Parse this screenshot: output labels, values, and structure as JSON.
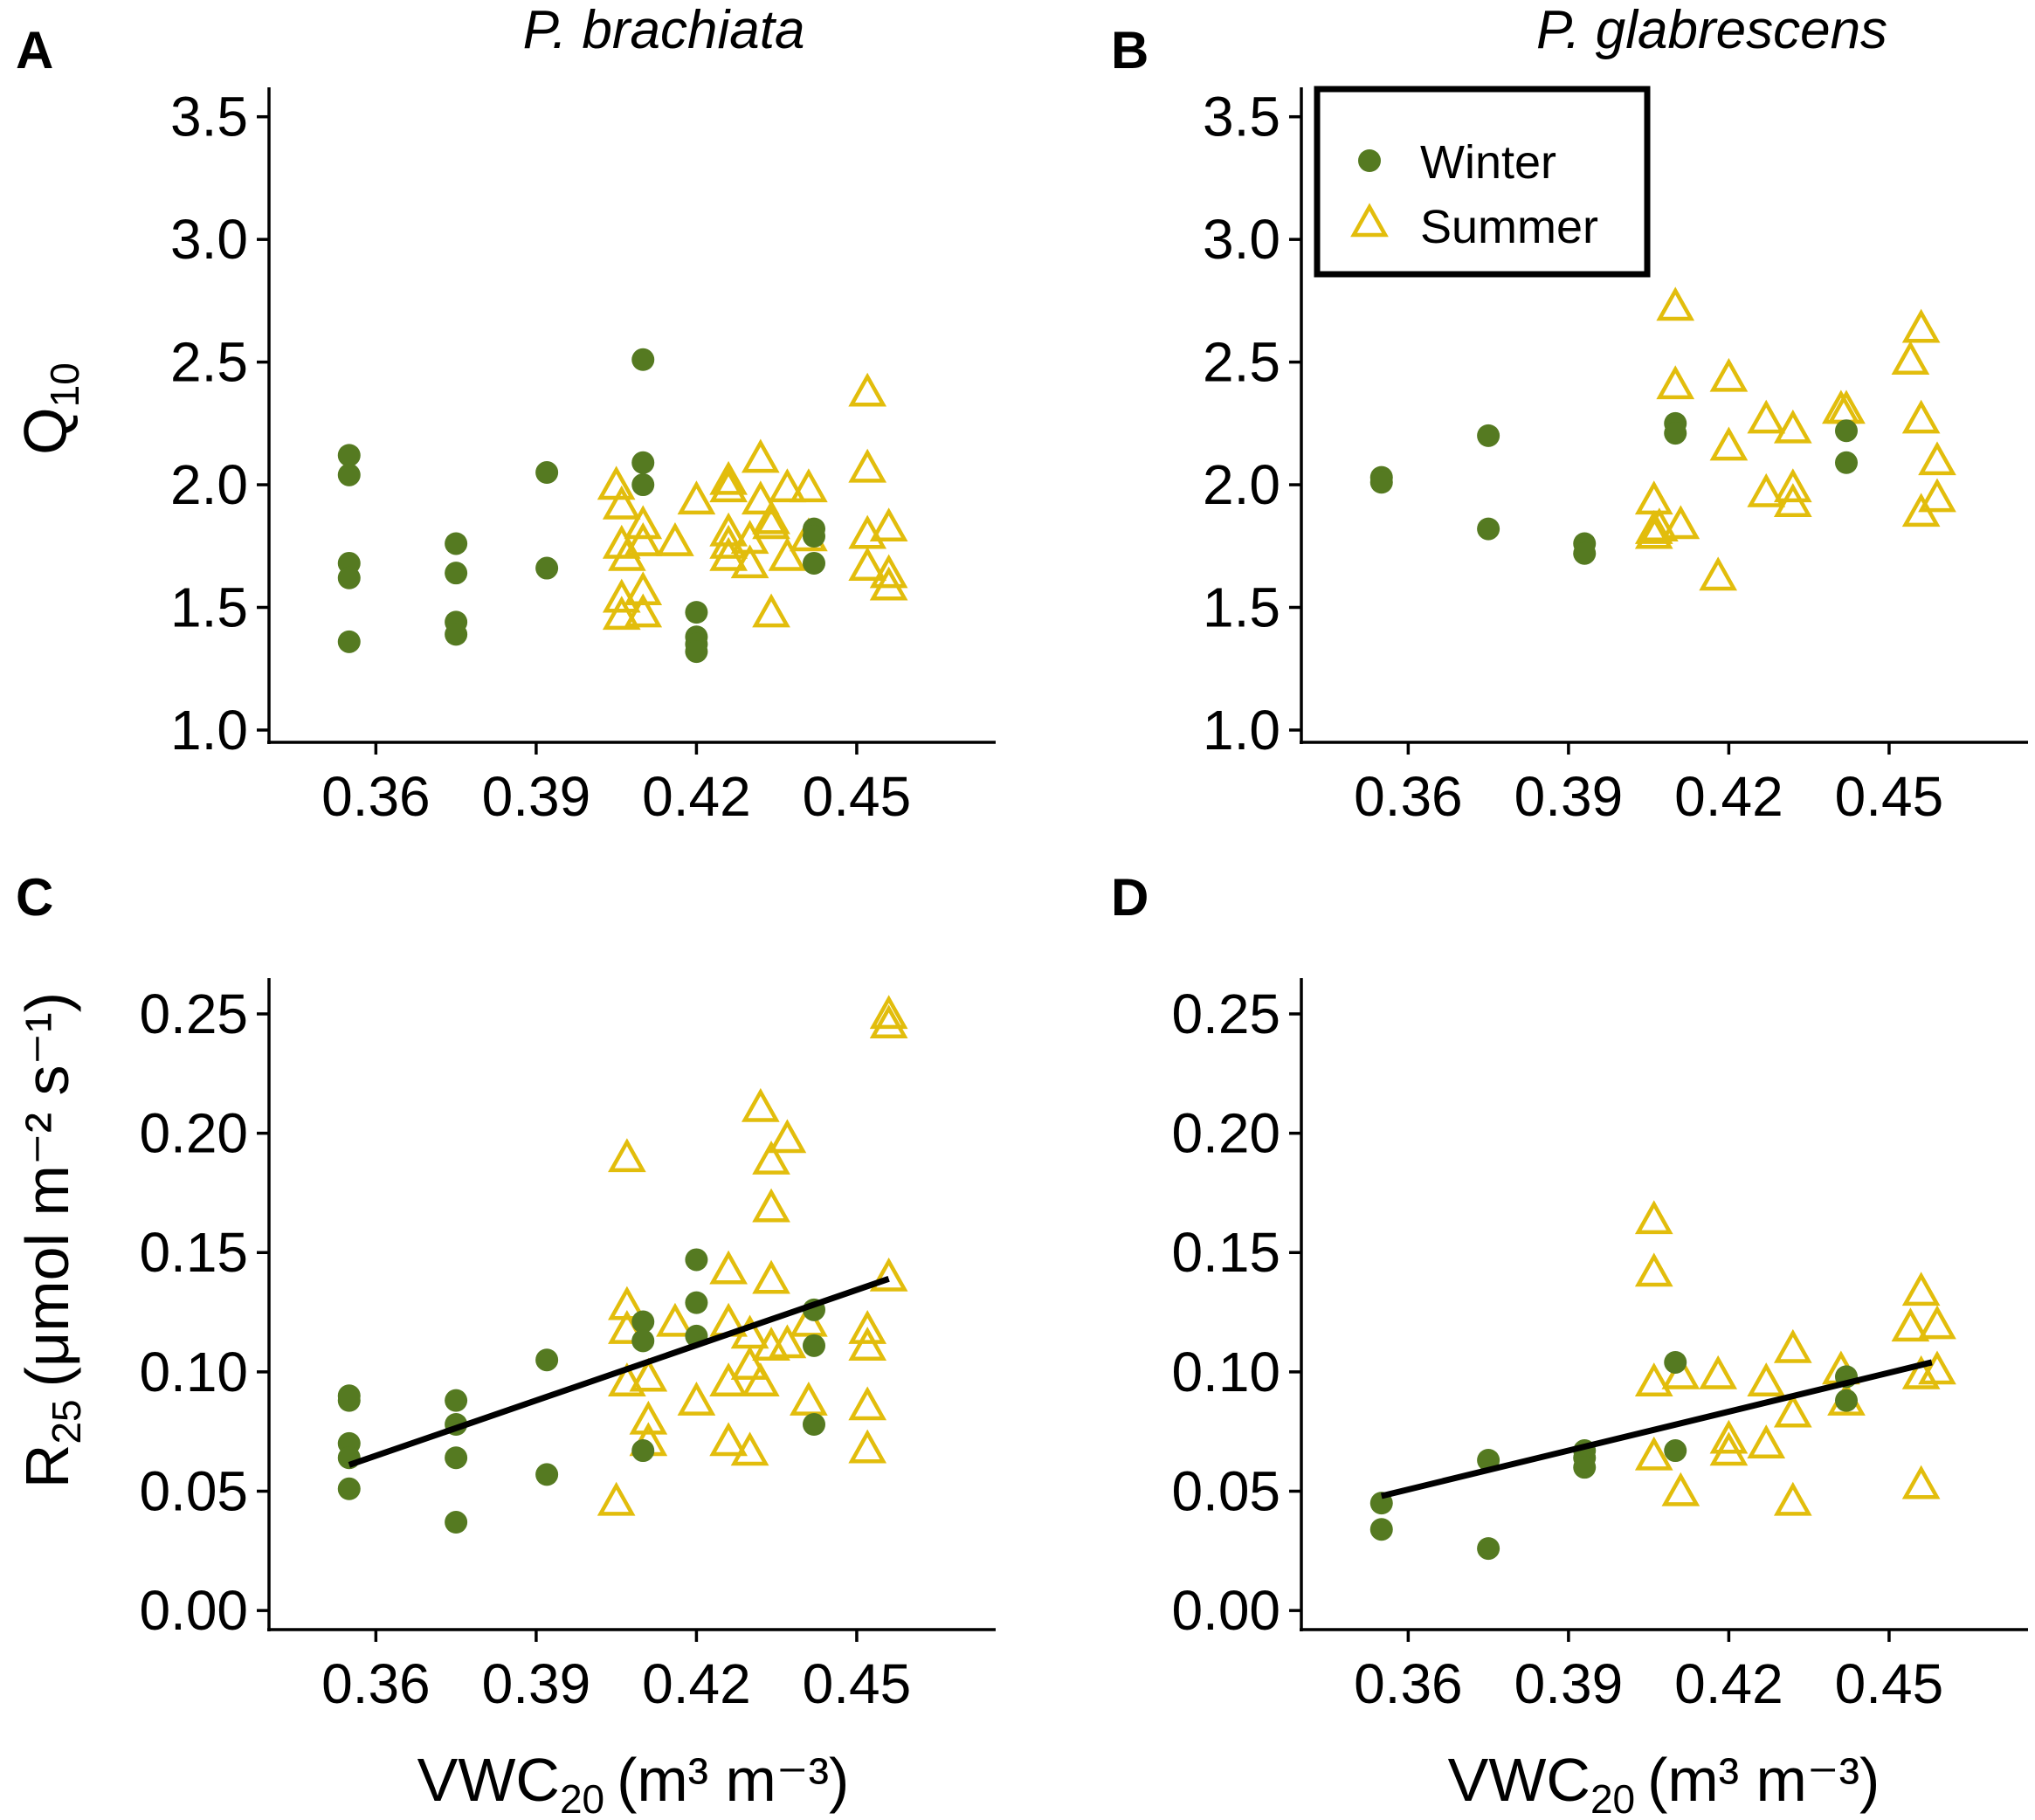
{
  "colors": {
    "winter": "#557a21",
    "summer": "#e2bd0c",
    "fit": "#000000",
    "axis": "#000000"
  },
  "chart_data": [
    {
      "panel": "A",
      "type": "scatter",
      "title": "P. brachiata",
      "ylabel_main": "Q",
      "ylabel_sub": "10",
      "xlim": [
        0.34,
        0.476
      ],
      "ylim": [
        0.95,
        3.62
      ],
      "xticks": [
        0.36,
        0.39,
        0.42,
        0.45
      ],
      "xtick_labels": [
        "0.36",
        "0.39",
        "0.42",
        "0.45"
      ],
      "yticks": [
        1.0,
        1.5,
        2.0,
        2.5,
        3.0,
        3.5
      ],
      "ytick_labels": [
        "1.0",
        "1.5",
        "2.0",
        "2.5",
        "3.0",
        "3.5"
      ],
      "series": [
        {
          "name": "Winter",
          "marker": "circle",
          "points": [
            [
              0.355,
              2.12
            ],
            [
              0.355,
              2.04
            ],
            [
              0.355,
              1.68
            ],
            [
              0.355,
              1.62
            ],
            [
              0.355,
              1.36
            ],
            [
              0.375,
              1.76
            ],
            [
              0.375,
              1.64
            ],
            [
              0.375,
              1.44
            ],
            [
              0.375,
              1.39
            ],
            [
              0.392,
              2.05
            ],
            [
              0.392,
              1.66
            ],
            [
              0.41,
              2.51
            ],
            [
              0.41,
              2.09
            ],
            [
              0.41,
              2.0
            ],
            [
              0.42,
              1.48
            ],
            [
              0.42,
              1.38
            ],
            [
              0.42,
              1.35
            ],
            [
              0.42,
              1.32
            ],
            [
              0.442,
              1.82
            ],
            [
              0.442,
              1.79
            ],
            [
              0.442,
              1.68
            ]
          ]
        },
        {
          "name": "Summer",
          "marker": "triangle",
          "points": [
            [
              0.405,
              1.99
            ],
            [
              0.406,
              1.91
            ],
            [
              0.406,
              1.75
            ],
            [
              0.407,
              1.7
            ],
            [
              0.406,
              1.53
            ],
            [
              0.406,
              1.46
            ],
            [
              0.41,
              1.83
            ],
            [
              0.41,
              1.76
            ],
            [
              0.41,
              1.56
            ],
            [
              0.41,
              1.47
            ],
            [
              0.416,
              1.76
            ],
            [
              0.42,
              1.93
            ],
            [
              0.426,
              2.01
            ],
            [
              0.426,
              1.98
            ],
            [
              0.426,
              1.8
            ],
            [
              0.426,
              1.75
            ],
            [
              0.426,
              1.7
            ],
            [
              0.43,
              1.77
            ],
            [
              0.43,
              1.67
            ],
            [
              0.432,
              2.1
            ],
            [
              0.432,
              1.93
            ],
            [
              0.434,
              1.85
            ],
            [
              0.434,
              1.83
            ],
            [
              0.434,
              1.47
            ],
            [
              0.437,
              1.98
            ],
            [
              0.437,
              1.7
            ],
            [
              0.441,
              1.98
            ],
            [
              0.441,
              1.78
            ],
            [
              0.452,
              2.37
            ],
            [
              0.452,
              2.06
            ],
            [
              0.452,
              1.79
            ],
            [
              0.452,
              1.66
            ],
            [
              0.456,
              1.82
            ],
            [
              0.456,
              1.63
            ],
            [
              0.456,
              1.58
            ]
          ]
        }
      ],
      "fit": null
    },
    {
      "panel": "B",
      "type": "scatter",
      "title": "P. glabrescens",
      "xlim": [
        0.34,
        0.476
      ],
      "ylim": [
        0.95,
        3.62
      ],
      "xticks": [
        0.36,
        0.39,
        0.42,
        0.45
      ],
      "xtick_labels": [
        "0.36",
        "0.39",
        "0.42",
        "0.45"
      ],
      "yticks": [
        1.0,
        1.5,
        2.0,
        2.5,
        3.0,
        3.5
      ],
      "ytick_labels": [
        "1.0",
        "1.5",
        "2.0",
        "2.5",
        "3.0",
        "3.5"
      ],
      "legend": {
        "position": "top-left",
        "entries": [
          "Winter",
          "Summer"
        ]
      },
      "series": [
        {
          "name": "Winter",
          "marker": "circle",
          "points": [
            [
              0.355,
              2.03
            ],
            [
              0.355,
              2.01
            ],
            [
              0.375,
              2.2
            ],
            [
              0.375,
              1.82
            ],
            [
              0.393,
              1.76
            ],
            [
              0.393,
              1.72
            ],
            [
              0.41,
              2.25
            ],
            [
              0.41,
              2.21
            ],
            [
              0.442,
              2.22
            ],
            [
              0.442,
              2.09
            ]
          ]
        },
        {
          "name": "Summer",
          "marker": "triangle",
          "points": [
            [
              0.406,
              1.93
            ],
            [
              0.406,
              1.81
            ],
            [
              0.406,
              1.79
            ],
            [
              0.407,
              1.82
            ],
            [
              0.41,
              2.72
            ],
            [
              0.41,
              2.4
            ],
            [
              0.411,
              1.83
            ],
            [
              0.418,
              1.62
            ],
            [
              0.42,
              2.43
            ],
            [
              0.42,
              2.15
            ],
            [
              0.427,
              2.26
            ],
            [
              0.427,
              1.96
            ],
            [
              0.432,
              2.22
            ],
            [
              0.432,
              1.98
            ],
            [
              0.432,
              1.92
            ],
            [
              0.441,
              2.3
            ],
            [
              0.442,
              2.3
            ],
            [
              0.454,
              2.5
            ],
            [
              0.456,
              2.63
            ],
            [
              0.456,
              2.26
            ],
            [
              0.456,
              1.88
            ],
            [
              0.459,
              2.09
            ],
            [
              0.459,
              1.94
            ]
          ]
        }
      ],
      "fit": null
    },
    {
      "panel": "C",
      "type": "scatter",
      "ylabel_main": "R",
      "ylabel_sub": "25",
      "ylabel_units": "(μmol m⁻² s⁻¹)",
      "xlabel_main": "VWC",
      "xlabel_sub": "20",
      "xlabel_units": "(m³ m⁻³)",
      "xlim": [
        0.34,
        0.476
      ],
      "ylim": [
        -0.008,
        0.265
      ],
      "xticks": [
        0.36,
        0.39,
        0.42,
        0.45
      ],
      "xtick_labels": [
        "0.36",
        "0.39",
        "0.42",
        "0.45"
      ],
      "yticks": [
        0.0,
        0.05,
        0.1,
        0.15,
        0.2,
        0.25
      ],
      "ytick_labels": [
        "0.00",
        "0.05",
        "0.10",
        "0.15",
        "0.20",
        "0.25"
      ],
      "series": [
        {
          "name": "Winter",
          "marker": "circle",
          "points": [
            [
              0.355,
              0.09
            ],
            [
              0.355,
              0.088
            ],
            [
              0.355,
              0.07
            ],
            [
              0.355,
              0.064
            ],
            [
              0.355,
              0.051
            ],
            [
              0.375,
              0.088
            ],
            [
              0.375,
              0.078
            ],
            [
              0.375,
              0.064
            ],
            [
              0.375,
              0.037
            ],
            [
              0.392,
              0.105
            ],
            [
              0.392,
              0.057
            ],
            [
              0.41,
              0.121
            ],
            [
              0.41,
              0.113
            ],
            [
              0.41,
              0.067
            ],
            [
              0.42,
              0.147
            ],
            [
              0.42,
              0.129
            ],
            [
              0.42,
              0.115
            ],
            [
              0.442,
              0.126
            ],
            [
              0.442,
              0.111
            ],
            [
              0.442,
              0.078
            ]
          ]
        },
        {
          "name": "Summer",
          "marker": "triangle",
          "points": [
            [
              0.405,
              0.045
            ],
            [
              0.407,
              0.189
            ],
            [
              0.407,
              0.127
            ],
            [
              0.407,
              0.117
            ],
            [
              0.407,
              0.095
            ],
            [
              0.411,
              0.097
            ],
            [
              0.411,
              0.079
            ],
            [
              0.411,
              0.07
            ],
            [
              0.416,
              0.12
            ],
            [
              0.42,
              0.087
            ],
            [
              0.426,
              0.142
            ],
            [
              0.426,
              0.12
            ],
            [
              0.426,
              0.095
            ],
            [
              0.426,
              0.07
            ],
            [
              0.43,
              0.115
            ],
            [
              0.43,
              0.102
            ],
            [
              0.43,
              0.066
            ],
            [
              0.432,
              0.21
            ],
            [
              0.432,
              0.095
            ],
            [
              0.434,
              0.188
            ],
            [
              0.434,
              0.168
            ],
            [
              0.434,
              0.138
            ],
            [
              0.434,
              0.11
            ],
            [
              0.437,
              0.197
            ],
            [
              0.437,
              0.111
            ],
            [
              0.441,
              0.087
            ],
            [
              0.441,
              0.12
            ],
            [
              0.452,
              0.117
            ],
            [
              0.452,
              0.11
            ],
            [
              0.452,
              0.085
            ],
            [
              0.452,
              0.067
            ],
            [
              0.456,
              0.249
            ],
            [
              0.456,
              0.245
            ],
            [
              0.456,
              0.139
            ]
          ]
        }
      ],
      "fit": {
        "x": [
          0.355,
          0.456
        ],
        "y": [
          0.061,
          0.139
        ]
      }
    },
    {
      "panel": "D",
      "type": "scatter",
      "xlabel_main": "VWC",
      "xlabel_sub": "20",
      "xlabel_units": "(m³ m⁻³)",
      "xlim": [
        0.34,
        0.476
      ],
      "ylim": [
        -0.008,
        0.265
      ],
      "xticks": [
        0.36,
        0.39,
        0.42,
        0.45
      ],
      "xtick_labels": [
        "0.36",
        "0.39",
        "0.42",
        "0.45"
      ],
      "yticks": [
        0.0,
        0.05,
        0.1,
        0.15,
        0.2,
        0.25
      ],
      "ytick_labels": [
        "0.00",
        "0.05",
        "0.10",
        "0.15",
        "0.20",
        "0.25"
      ],
      "series": [
        {
          "name": "Winter",
          "marker": "circle",
          "points": [
            [
              0.355,
              0.045
            ],
            [
              0.355,
              0.034
            ],
            [
              0.375,
              0.063
            ],
            [
              0.375,
              0.026
            ],
            [
              0.393,
              0.067
            ],
            [
              0.393,
              0.064
            ],
            [
              0.393,
              0.06
            ],
            [
              0.41,
              0.104
            ],
            [
              0.41,
              0.067
            ],
            [
              0.442,
              0.098
            ],
            [
              0.442,
              0.088
            ]
          ]
        },
        {
          "name": "Summer",
          "marker": "triangle",
          "points": [
            [
              0.406,
              0.163
            ],
            [
              0.406,
              0.141
            ],
            [
              0.406,
              0.095
            ],
            [
              0.406,
              0.064
            ],
            [
              0.411,
              0.098
            ],
            [
              0.411,
              0.049
            ],
            [
              0.418,
              0.098
            ],
            [
              0.42,
              0.071
            ],
            [
              0.42,
              0.066
            ],
            [
              0.427,
              0.095
            ],
            [
              0.427,
              0.069
            ],
            [
              0.432,
              0.109
            ],
            [
              0.432,
              0.082
            ],
            [
              0.432,
              0.045
            ],
            [
              0.441,
              0.1
            ],
            [
              0.442,
              0.087
            ],
            [
              0.454,
              0.118
            ],
            [
              0.456,
              0.133
            ],
            [
              0.456,
              0.098
            ],
            [
              0.456,
              0.052
            ],
            [
              0.459,
              0.119
            ],
            [
              0.459,
              0.1
            ]
          ]
        }
      ],
      "fit": {
        "x": [
          0.355,
          0.458
        ],
        "y": [
          0.048,
          0.104
        ]
      }
    }
  ]
}
